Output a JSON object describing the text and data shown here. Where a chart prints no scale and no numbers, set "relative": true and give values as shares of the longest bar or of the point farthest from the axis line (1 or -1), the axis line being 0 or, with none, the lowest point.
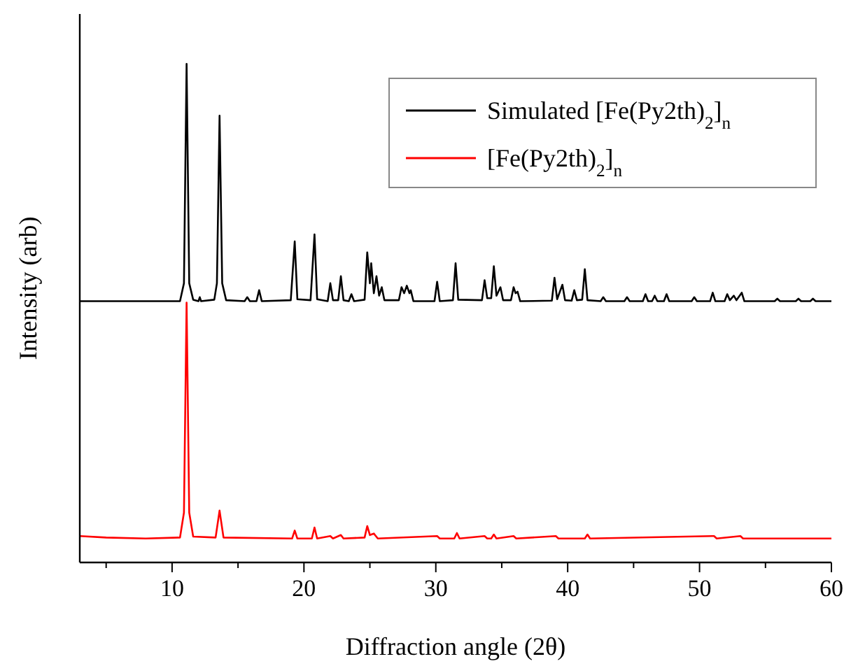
{
  "chart_data": {
    "type": "line",
    "relative": true,
    "xlabel": "Diffraction angle (2θ)",
    "ylabel": "Intensity (arb)",
    "xlim": [
      3,
      60
    ],
    "xticks": [
      {
        "value": 5,
        "label": null
      },
      10,
      {
        "value": 15,
        "label": null
      },
      20,
      {
        "value": 25,
        "label": null
      },
      30,
      {
        "value": 35,
        "label": null
      },
      40,
      {
        "value": 45,
        "label": null
      },
      50,
      {
        "value": 55,
        "label": null
      },
      60
    ],
    "legend": "top right",
    "grid": false,
    "line_style": "solid",
    "series": [
      {
        "name": "Simulated [Fe(Py2th)$_{2}$]$_{n}$",
        "color": "#000000",
        "x": [
          3,
          10.6,
          10.9,
          11.1,
          11.3,
          11.6,
          12.0,
          12.1,
          12.2,
          13.2,
          13.4,
          13.6,
          13.8,
          14.1,
          15.5,
          15.7,
          15.9,
          16.4,
          16.6,
          16.8,
          19.0,
          19.3,
          19.5,
          20.5,
          20.8,
          21.0,
          21.8,
          22.0,
          22.2,
          22.6,
          22.8,
          23.0,
          23.4,
          23.6,
          23.8,
          24.6,
          24.8,
          25.0,
          25.1,
          25.3,
          25.5,
          25.7,
          25.9,
          26.1,
          27.2,
          27.4,
          27.6,
          27.8,
          28.0,
          28.1,
          28.3,
          29.9,
          30.1,
          30.3,
          31.3,
          31.5,
          31.7,
          33.5,
          33.7,
          33.9,
          34.2,
          34.4,
          34.6,
          34.9,
          35.1,
          35.7,
          35.9,
          36.05,
          36.2,
          36.4,
          38.8,
          39.0,
          39.2,
          39.6,
          39.8,
          40.3,
          40.5,
          40.7,
          41.1,
          41.3,
          41.5,
          42.5,
          42.7,
          42.9,
          44.3,
          44.5,
          44.7,
          45.7,
          45.9,
          46.1,
          46.4,
          46.6,
          46.8,
          47.3,
          47.5,
          47.7,
          49.4,
          49.6,
          49.8,
          50.8,
          51.0,
          51.2,
          51.9,
          52.1,
          52.3,
          52.6,
          52.8,
          53.2,
          53.4,
          55.7,
          55.9,
          56.1,
          57.3,
          57.5,
          57.7,
          58.4,
          58.6,
          58.8,
          60
        ],
        "values": [
          0.524,
          0.524,
          0.56,
          1.0,
          0.56,
          0.527,
          0.524,
          0.532,
          0.524,
          0.527,
          0.56,
          0.896,
          0.56,
          0.526,
          0.524,
          0.532,
          0.524,
          0.524,
          0.546,
          0.524,
          0.526,
          0.644,
          0.528,
          0.526,
          0.658,
          0.528,
          0.524,
          0.56,
          0.526,
          0.526,
          0.574,
          0.526,
          0.524,
          0.538,
          0.524,
          0.527,
          0.622,
          0.56,
          0.6,
          0.54,
          0.574,
          0.535,
          0.552,
          0.526,
          0.526,
          0.552,
          0.54,
          0.555,
          0.54,
          0.546,
          0.524,
          0.524,
          0.563,
          0.524,
          0.526,
          0.6,
          0.527,
          0.526,
          0.566,
          0.53,
          0.53,
          0.594,
          0.535,
          0.552,
          0.526,
          0.526,
          0.552,
          0.54,
          0.543,
          0.524,
          0.525,
          0.571,
          0.528,
          0.557,
          0.526,
          0.525,
          0.546,
          0.526,
          0.527,
          0.588,
          0.526,
          0.524,
          0.532,
          0.524,
          0.524,
          0.532,
          0.524,
          0.524,
          0.538,
          0.524,
          0.524,
          0.535,
          0.524,
          0.524,
          0.538,
          0.524,
          0.524,
          0.532,
          0.524,
          0.524,
          0.541,
          0.524,
          0.524,
          0.538,
          0.526,
          0.535,
          0.526,
          0.541,
          0.524,
          0.524,
          0.529,
          0.524,
          0.524,
          0.529,
          0.524,
          0.524,
          0.529,
          0.524,
          0.524
        ]
      },
      {
        "name": "[Fe(Py2th)$_{2}$]$_{n}$",
        "color": "#ff0000",
        "x": [
          3,
          5,
          8,
          10.6,
          10.9,
          11.1,
          11.3,
          11.6,
          13.3,
          13.6,
          13.9,
          19.1,
          19.3,
          19.5,
          20.6,
          20.8,
          21.0,
          22.0,
          22.2,
          22.8,
          23.0,
          24.6,
          24.8,
          25.0,
          25.3,
          25.6,
          30.1,
          30.3,
          31.4,
          31.6,
          31.8,
          33.7,
          33.9,
          34.2,
          34.4,
          34.6,
          35.9,
          36.1,
          39.1,
          39.3,
          41.3,
          41.5,
          41.7,
          51.1,
          51.3,
          53.1,
          53.3,
          60
        ],
        "values": [
          0.053,
          0.05,
          0.048,
          0.05,
          0.1,
          0.521,
          0.1,
          0.052,
          0.05,
          0.104,
          0.05,
          0.048,
          0.064,
          0.048,
          0.048,
          0.07,
          0.048,
          0.053,
          0.048,
          0.055,
          0.048,
          0.05,
          0.073,
          0.055,
          0.058,
          0.048,
          0.053,
          0.048,
          0.048,
          0.059,
          0.048,
          0.053,
          0.048,
          0.048,
          0.056,
          0.048,
          0.053,
          0.048,
          0.053,
          0.048,
          0.048,
          0.056,
          0.048,
          0.053,
          0.048,
          0.053,
          0.048,
          0.048
        ]
      }
    ]
  }
}
